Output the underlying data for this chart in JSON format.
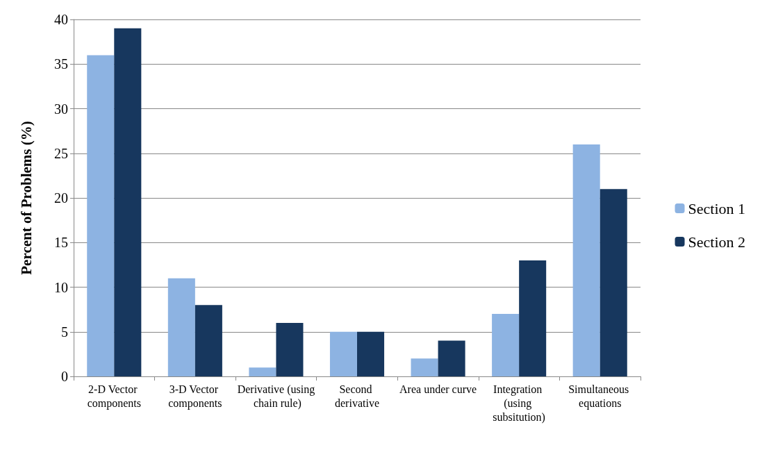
{
  "chart_data": {
    "type": "bar",
    "ylabel": "Percent of Problems (%)",
    "categories": [
      "2-D Vector components",
      "3-D Vector components",
      "Derivative (using chain rule)",
      "Second derivative",
      "Area under curve",
      "Integration (using subsitution)",
      "Simultaneous equations"
    ],
    "series": [
      {
        "name": "Section 1",
        "color": "#8db3e2",
        "values": [
          36,
          11,
          1,
          5,
          2,
          7,
          26
        ]
      },
      {
        "name": "Section 2",
        "color": "#17375e",
        "values": [
          39,
          8,
          6,
          5,
          4,
          13,
          21
        ]
      }
    ],
    "ylim": [
      0,
      40
    ],
    "yticks": [
      0,
      5,
      10,
      15,
      20,
      25,
      30,
      35,
      40
    ],
    "grid": "y",
    "legend": "right"
  }
}
